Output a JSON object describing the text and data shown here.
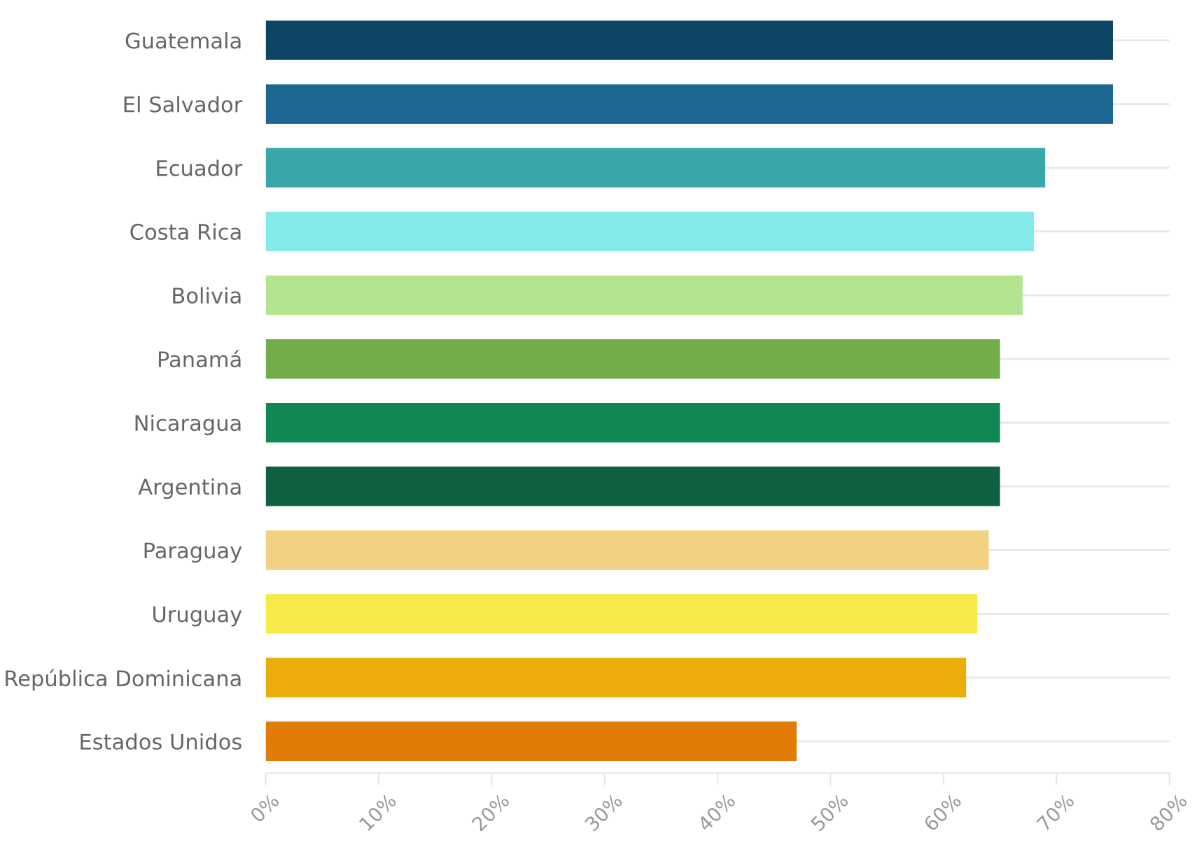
{
  "chart_data": {
    "type": "bar",
    "orientation": "horizontal",
    "categories": [
      "Guatemala",
      "El Salvador",
      "Ecuador",
      "Costa Rica",
      "Bolivia",
      "Panamá",
      "Nicaragua",
      "Argentina",
      "Paraguay",
      "Uruguay",
      "República Dominicana",
      "Estados Unidos"
    ],
    "values": [
      75,
      75,
      69,
      68,
      67,
      65,
      65,
      65,
      64,
      63,
      62,
      47
    ],
    "colors": [
      "#0f4564",
      "#1d6893",
      "#39a6a7",
      "#85ebea",
      "#b3e48f",
      "#73ad4a",
      "#118754",
      "#0f6041",
      "#f2d282",
      "#f6ea48",
      "#ebad0a",
      "#e07b06"
    ],
    "xlim": [
      0,
      80
    ],
    "xticks": [
      {
        "value": 0,
        "label": "0%"
      },
      {
        "value": 10,
        "label": "10%"
      },
      {
        "value": 20,
        "label": "20%"
      },
      {
        "value": 30,
        "label": "30%"
      },
      {
        "value": 40,
        "label": "40%"
      },
      {
        "value": 50,
        "label": "50%"
      },
      {
        "value": 60,
        "label": "60%"
      },
      {
        "value": 70,
        "label": "70%"
      },
      {
        "value": 80,
        "label": "80%"
      }
    ],
    "grid": "y"
  }
}
